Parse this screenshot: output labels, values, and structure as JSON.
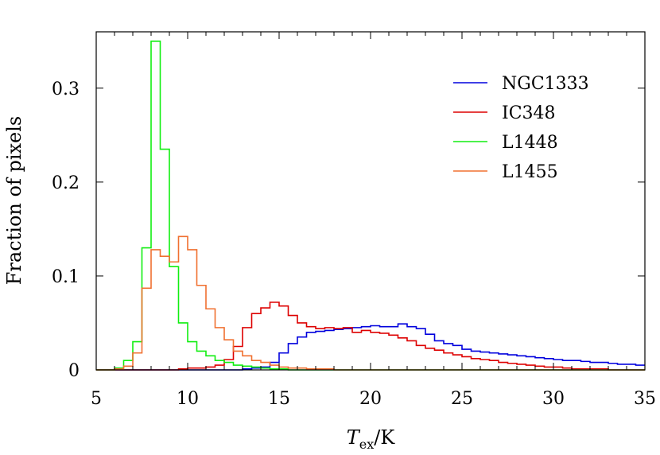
{
  "chart_data": {
    "type": "line",
    "xlabel": "T",
    "xlabel_sub": "ex",
    "xlabel_unit": "/K",
    "ylabel": "Fraction of pixels",
    "xlim": [
      5,
      35
    ],
    "ylim": [
      0,
      0.36
    ],
    "xticks": [
      5,
      10,
      15,
      20,
      25,
      30,
      35
    ],
    "yticks": [
      0,
      0.1,
      0.2,
      0.3
    ],
    "xtick_labels": [
      "5",
      "10",
      "15",
      "20",
      "25",
      "30",
      "35"
    ],
    "ytick_labels": [
      "0",
      "0.1",
      "0.2",
      "0.3"
    ],
    "legend_position": "top-right",
    "grid": false,
    "bin_width": 0.5,
    "x_start": 5,
    "series": [
      {
        "name": "NGC1333",
        "color": "#0000dd",
        "values": [
          0,
          0,
          0,
          0,
          0,
          0,
          0,
          0,
          0,
          0,
          0,
          0,
          0,
          0,
          0,
          0,
          0.001,
          0.002,
          0.003,
          0.008,
          0.018,
          0.028,
          0.035,
          0.04,
          0.041,
          0.042,
          0.043,
          0.044,
          0.045,
          0.046,
          0.047,
          0.046,
          0.046,
          0.049,
          0.046,
          0.044,
          0.038,
          0.031,
          0.028,
          0.026,
          0.022,
          0.02,
          0.019,
          0.018,
          0.017,
          0.016,
          0.015,
          0.014,
          0.013,
          0.012,
          0.011,
          0.01,
          0.01,
          0.009,
          0.008,
          0.008,
          0.007,
          0.006,
          0.006,
          0.005
        ]
      },
      {
        "name": "IC348",
        "color": "#dd0000",
        "values": [
          0,
          0,
          0,
          0,
          0,
          0,
          0,
          0,
          0,
          0.001,
          0.002,
          0.002,
          0.003,
          0.005,
          0.011,
          0.025,
          0.045,
          0.06,
          0.066,
          0.072,
          0.068,
          0.058,
          0.05,
          0.046,
          0.044,
          0.045,
          0.044,
          0.045,
          0.04,
          0.042,
          0.04,
          0.039,
          0.037,
          0.034,
          0.031,
          0.026,
          0.023,
          0.021,
          0.018,
          0.016,
          0.014,
          0.012,
          0.011,
          0.01,
          0.008,
          0.007,
          0.006,
          0.005,
          0.004,
          0.003,
          0.003,
          0.002,
          0.001,
          0.001,
          0.001,
          0.001,
          0,
          0,
          0,
          0
        ]
      },
      {
        "name": "L1448",
        "color": "#11ee11",
        "values": [
          0,
          0,
          0.002,
          0.01,
          0.03,
          0.13,
          0.35,
          0.235,
          0.11,
          0.05,
          0.03,
          0.02,
          0.015,
          0.01,
          0.008,
          0.005,
          0.004,
          0.003,
          0.002,
          0.001,
          0.001,
          0,
          0,
          0,
          0,
          0,
          0,
          0,
          0,
          0,
          0,
          0,
          0,
          0,
          0,
          0,
          0,
          0,
          0,
          0,
          0,
          0,
          0,
          0,
          0,
          0,
          0,
          0,
          0,
          0,
          0,
          0,
          0,
          0,
          0,
          0,
          0,
          0,
          0,
          0
        ]
      },
      {
        "name": "L1455",
        "color": "#f07030",
        "values": [
          0,
          0,
          0.001,
          0.004,
          0.018,
          0.087,
          0.128,
          0.121,
          0.115,
          0.142,
          0.128,
          0.09,
          0.065,
          0.045,
          0.032,
          0.02,
          0.015,
          0.01,
          0.008,
          0.005,
          0.003,
          0.002,
          0.002,
          0.001,
          0.001,
          0.001,
          0,
          0,
          0,
          0,
          0,
          0,
          0,
          0,
          0,
          0,
          0,
          0,
          0,
          0,
          0,
          0,
          0,
          0,
          0,
          0,
          0,
          0,
          0,
          0,
          0,
          0,
          0,
          0,
          0,
          0,
          0,
          0,
          0,
          0
        ]
      }
    ]
  }
}
